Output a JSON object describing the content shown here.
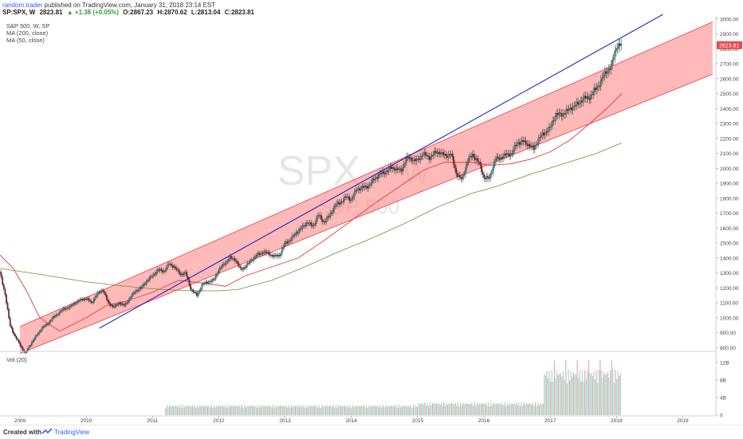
{
  "header": {
    "user": "random.trader",
    "published_text": "published on TradingView.com, January 31, 2018 23:14 EST",
    "symbol": "SP:SPX, W",
    "last": "2823.81",
    "change": "+1.38 (+0.05%)",
    "open": "O:2867.23",
    "high": "H:2870.62",
    "low": "L:2813.04",
    "close": "C:2823.81"
  },
  "legend": {
    "title": "S&P 500, W, SP",
    "ma200": "MA (200, close)",
    "ma50": "MA (50, close)",
    "vol": "Vol (20)"
  },
  "watermark": {
    "symbol": "SPX",
    "interval": "W",
    "name": "S&P 500"
  },
  "price_badge": "2823.81",
  "footer": {
    "created": "Created with",
    "brand": "TradingView"
  },
  "colors": {
    "channel_fill": "#ff7f7f",
    "channel_edge": "#ee3a3a",
    "trendline": "#1f22c8",
    "ma50": "#e23a3a",
    "ma200": "#6a8f3a",
    "up": "#26a69a",
    "down": "#8b1a1a",
    "badge": "#e84a4a"
  },
  "chart_data": {
    "type": "line",
    "title": "S&P 500, W, SP",
    "price_ylim": [
      780,
      3020
    ],
    "price_ticks": [
      800,
      900,
      1000,
      1100,
      1200,
      1300,
      1400,
      1500,
      1600,
      1700,
      1800,
      1900,
      2000,
      2100,
      2200,
      2300,
      2400,
      2500,
      2600,
      2700,
      2800,
      2900,
      3000
    ],
    "price_tick_labels": [
      "800.00",
      "900.00",
      "1000.00",
      "1100.00",
      "1200.00",
      "1300.00",
      "1400.00",
      "1500.00",
      "1600.00",
      "1700.00",
      "1800.00",
      "1900.00",
      "2000.00",
      "2100.00",
      "2200.00",
      "2300.00",
      "2400.00",
      "2500.00",
      "2600.00",
      "2700.00",
      "2800.00",
      "2900.00",
      "3000.00"
    ],
    "xlim": [
      2008.7,
      2019.5
    ],
    "x_ticks": [
      2009,
      2010,
      2011,
      2012,
      2013,
      2014,
      2015,
      2016,
      2017,
      2018,
      2019
    ],
    "x_tick_labels": [
      "2009",
      "2010",
      "2011",
      "2012",
      "2013",
      "2014",
      "2015",
      "2016",
      "2017",
      "2018",
      "2019"
    ],
    "vol_ylim": [
      0,
      14
    ],
    "vol_ticks": [
      0,
      4,
      8,
      12
    ],
    "vol_tick_labels": [
      "0",
      "4B",
      "8B",
      "12B"
    ],
    "series": [
      {
        "name": "S&P 500",
        "x": [
          2008.7,
          2008.78,
          2008.85,
          2008.92,
          2009.0,
          2009.08,
          2009.17,
          2009.25,
          2009.33,
          2009.42,
          2009.5,
          2009.58,
          2009.67,
          2009.75,
          2009.83,
          2009.92,
          2010.0,
          2010.08,
          2010.17,
          2010.25,
          2010.33,
          2010.42,
          2010.5,
          2010.58,
          2010.67,
          2010.75,
          2010.83,
          2010.92,
          2011.0,
          2011.08,
          2011.17,
          2011.25,
          2011.33,
          2011.42,
          2011.5,
          2011.58,
          2011.67,
          2011.75,
          2011.83,
          2011.92,
          2012.0,
          2012.08,
          2012.17,
          2012.25,
          2012.33,
          2012.42,
          2012.5,
          2012.58,
          2012.67,
          2012.75,
          2012.83,
          2012.92,
          2013.0,
          2013.08,
          2013.17,
          2013.25,
          2013.33,
          2013.42,
          2013.5,
          2013.58,
          2013.67,
          2013.75,
          2013.83,
          2013.92,
          2014.0,
          2014.08,
          2014.17,
          2014.25,
          2014.33,
          2014.42,
          2014.5,
          2014.58,
          2014.67,
          2014.75,
          2014.83,
          2014.92,
          2015.0,
          2015.08,
          2015.17,
          2015.25,
          2015.33,
          2015.42,
          2015.5,
          2015.58,
          2015.67,
          2015.75,
          2015.83,
          2015.92,
          2016.0,
          2016.08,
          2016.17,
          2016.25,
          2016.33,
          2016.42,
          2016.5,
          2016.58,
          2016.67,
          2016.75,
          2016.83,
          2016.92,
          2017.0,
          2017.08,
          2017.17,
          2017.25,
          2017.33,
          2017.42,
          2017.5,
          2017.58,
          2017.67,
          2017.75,
          2017.83,
          2017.92,
          2018.0,
          2018.08
        ],
        "values": [
          1300,
          1150,
          950,
          880,
          820,
          760,
          830,
          880,
          930,
          960,
          1000,
          1030,
          1060,
          1070,
          1100,
          1120,
          1130,
          1100,
          1160,
          1190,
          1100,
          1070,
          1100,
          1080,
          1140,
          1180,
          1200,
          1250,
          1280,
          1320,
          1310,
          1360,
          1340,
          1290,
          1300,
          1190,
          1150,
          1220,
          1240,
          1250,
          1320,
          1360,
          1400,
          1390,
          1320,
          1350,
          1390,
          1420,
          1440,
          1430,
          1410,
          1420,
          1500,
          1520,
          1570,
          1600,
          1640,
          1610,
          1690,
          1640,
          1680,
          1750,
          1770,
          1810,
          1790,
          1860,
          1870,
          1880,
          1920,
          1960,
          1970,
          2000,
          2000,
          1980,
          2070,
          2060,
          2050,
          2100,
          2070,
          2100,
          2110,
          2080,
          2100,
          1970,
          1920,
          2050,
          2090,
          2040,
          1940,
          1930,
          2060,
          2070,
          2090,
          2100,
          2170,
          2180,
          2160,
          2130,
          2200,
          2240,
          2270,
          2360,
          2360,
          2380,
          2410,
          2430,
          2470,
          2470,
          2520,
          2570,
          2640,
          2680,
          2820,
          2823.81
        ]
      },
      {
        "name": "MA (50, close)",
        "x": [
          2008.7,
          2008.9,
          2009.1,
          2009.3,
          2009.6,
          2010.0,
          2010.3,
          2010.6,
          2011.0,
          2011.4,
          2011.8,
          2012.1,
          2012.4,
          2012.8,
          2013.2,
          2013.6,
          2014.0,
          2014.4,
          2014.8,
          2015.1,
          2015.4,
          2015.8,
          2016.1,
          2016.4,
          2016.7,
          2017.0,
          2017.3,
          2017.6,
          2017.9,
          2018.08
        ],
        "values": [
          1420,
          1330,
          1180,
          1000,
          910,
          1000,
          1080,
          1110,
          1170,
          1250,
          1230,
          1210,
          1280,
          1340,
          1400,
          1520,
          1650,
          1780,
          1900,
          1990,
          2040,
          2040,
          2020,
          2030,
          2060,
          2110,
          2190,
          2300,
          2420,
          2500
        ]
      },
      {
        "name": "MA (200, close)",
        "x": [
          2008.7,
          2009.3,
          2010.0,
          2010.6,
          2011.1,
          2011.6,
          2012.0,
          2012.3,
          2012.8,
          2013.3,
          2013.8,
          2014.3,
          2014.8,
          2015.3,
          2015.8,
          2016.2,
          2016.7,
          2017.2,
          2017.7,
          2018.08
        ],
        "values": [
          1330,
          1290,
          1240,
          1210,
          1190,
          1180,
          1180,
          1190,
          1250,
          1340,
          1440,
          1530,
          1630,
          1740,
          1830,
          1880,
          1960,
          2030,
          2100,
          2170
        ]
      }
    ],
    "trendline": {
      "x": [
        2010.2,
        2018.7
      ],
      "values": [
        930,
        3030
      ]
    },
    "channel": {
      "x": [
        2009.0,
        2019.45
      ],
      "upper": [
        940,
        2980
      ],
      "lower": [
        760,
        2630
      ]
    },
    "volume": {
      "x_start": 2011.2,
      "x_end": 2018.08,
      "level_2011_2014": 2,
      "level_2015_2016": 2.5,
      "level_2017_2018": 9,
      "peak": 12.5
    },
    "grid": false,
    "legend_position": "top-left"
  }
}
